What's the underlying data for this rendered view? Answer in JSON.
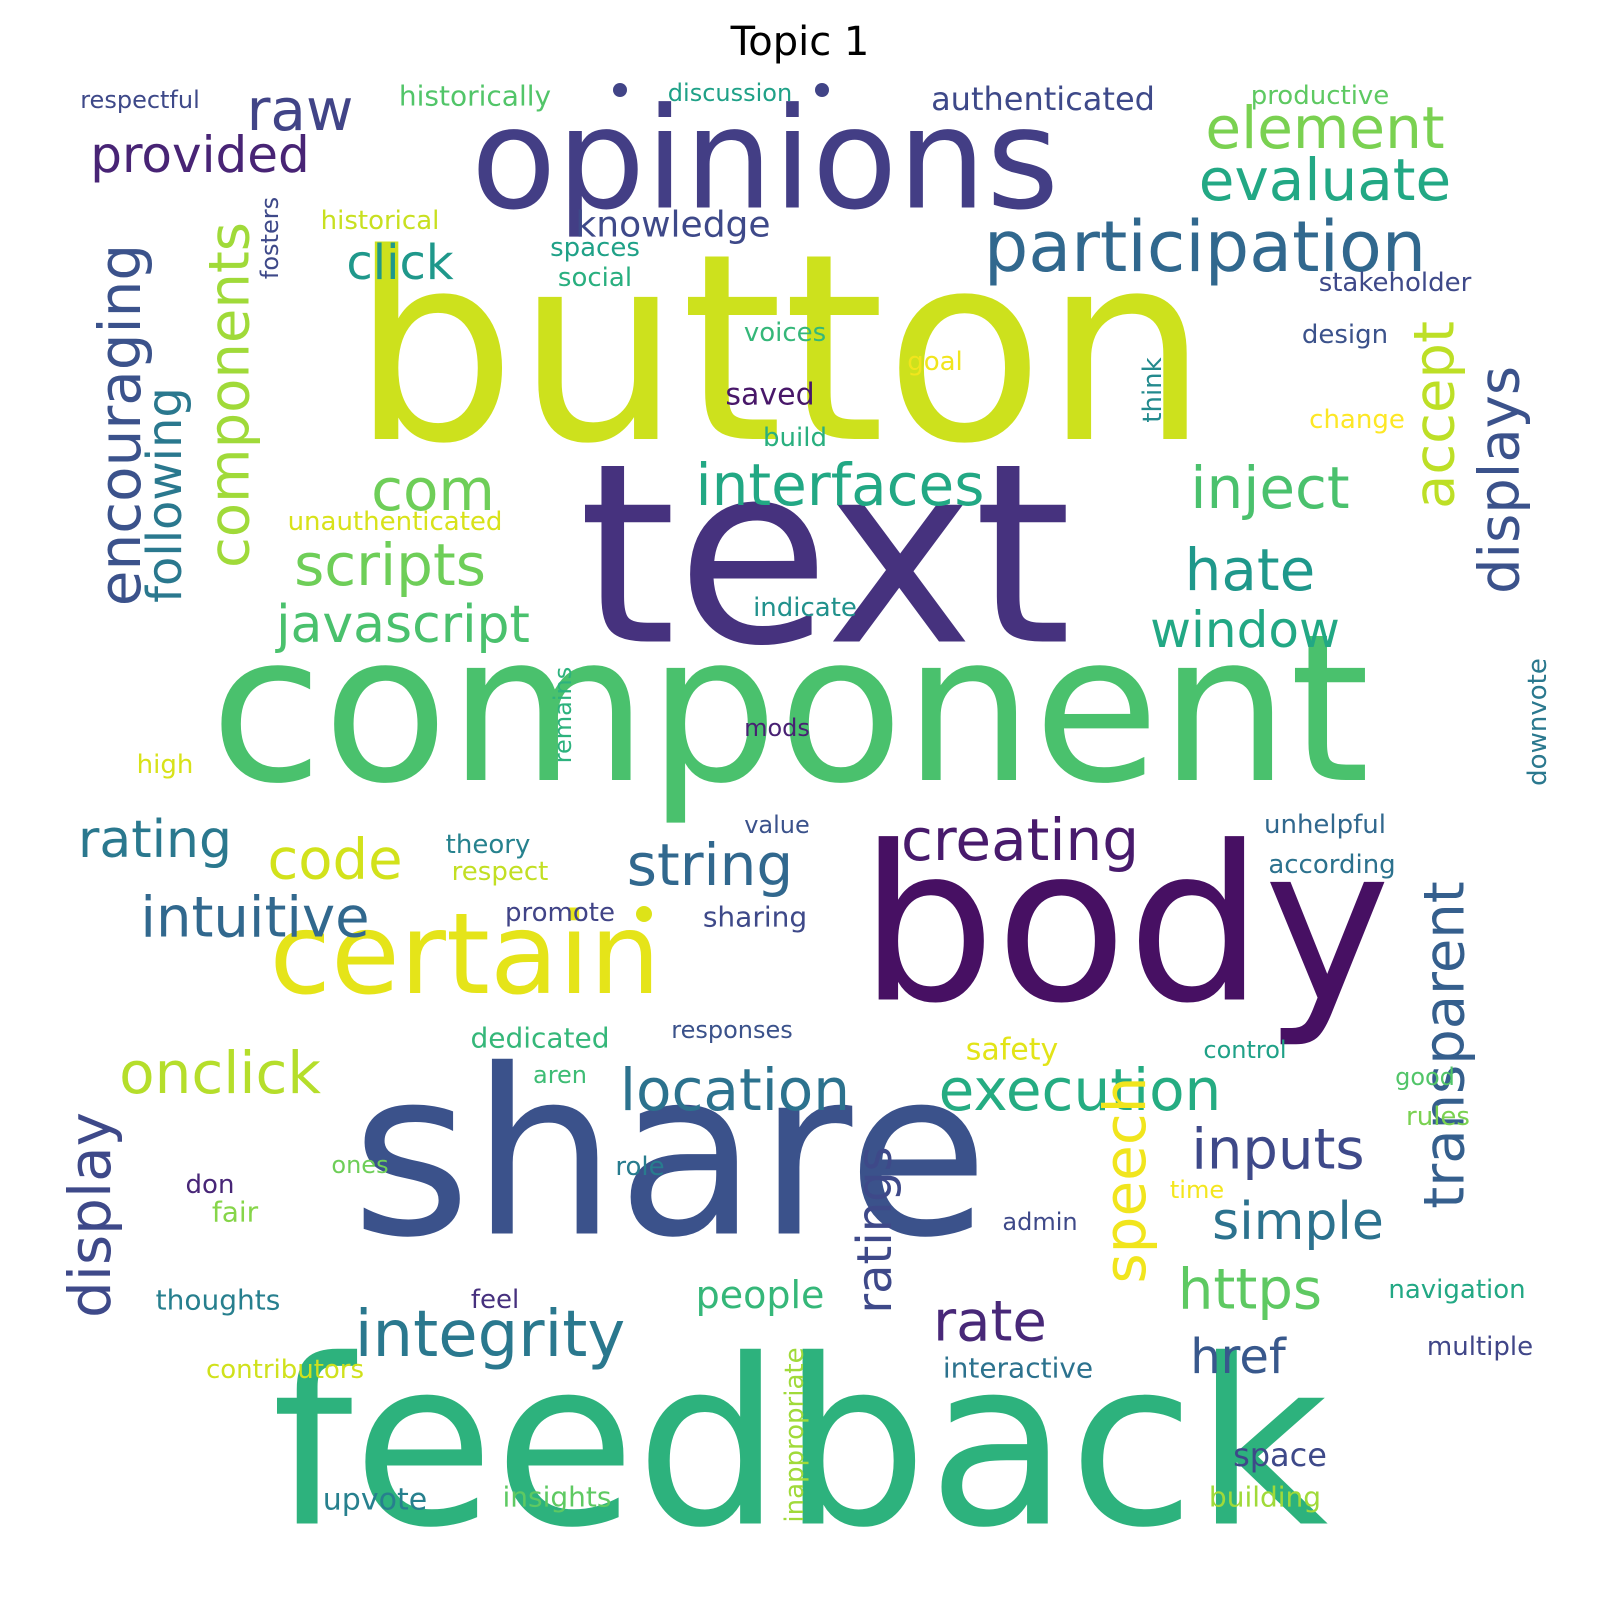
{
  "title": "Topic 1",
  "palette": {
    "viridis_dark": "#440154",
    "viridis_indigo": "#46327e",
    "viridis_blue": "#365c8d",
    "viridis_teal": "#277f8e",
    "viridis_green": "#1fa187",
    "viridis_lime": "#4ac16d",
    "viridis_yellowgreen": "#a0da39",
    "viridis_yellow": "#fde725"
  },
  "words": [
    {
      "text": "button",
      "color": "#cde11d"
    },
    {
      "text": "text",
      "color": "#46327e"
    },
    {
      "text": "component",
      "color": "#4ac16d"
    },
    {
      "text": "body",
      "color": "#471063"
    },
    {
      "text": "share",
      "color": "#3b528b"
    },
    {
      "text": "feedback",
      "color": "#2db27d"
    },
    {
      "text": "opinions",
      "color": "#433e85"
    },
    {
      "text": "certain",
      "color": "#e5e419"
    },
    {
      "text": "participation",
      "color": "#31688e"
    },
    {
      "text": "evaluate",
      "color": "#22a884"
    },
    {
      "text": "element",
      "color": "#7ad151"
    },
    {
      "text": "raw",
      "color": "#414487"
    },
    {
      "text": "provided",
      "color": "#482475"
    },
    {
      "text": "encouraging",
      "color": "#3b528b"
    },
    {
      "text": "components",
      "color": "#a0da39"
    },
    {
      "text": "following",
      "color": "#2a788e"
    },
    {
      "text": "click",
      "color": "#1f988b"
    },
    {
      "text": "knowledge",
      "color": "#3e4989"
    },
    {
      "text": "interfaces",
      "color": "#22a884"
    },
    {
      "text": "inject",
      "color": "#4ac16d"
    },
    {
      "text": "accept",
      "color": "#bddf26"
    },
    {
      "text": "displays",
      "color": "#3b528b"
    },
    {
      "text": "com",
      "color": "#6ece58"
    },
    {
      "text": "scripts",
      "color": "#6ece58"
    },
    {
      "text": "javascript",
      "color": "#4ac16d"
    },
    {
      "text": "hate",
      "color": "#1f988b"
    },
    {
      "text": "window",
      "color": "#22a884"
    },
    {
      "text": "rating",
      "color": "#2a788e"
    },
    {
      "text": "code",
      "color": "#d2e21b"
    },
    {
      "text": "string",
      "color": "#31688e"
    },
    {
      "text": "creating",
      "color": "#481a6c"
    },
    {
      "text": "intuitive",
      "color": "#31688e"
    },
    {
      "text": "transparent",
      "color": "#355f8d"
    },
    {
      "text": "onclick",
      "color": "#b5de2b"
    },
    {
      "text": "location",
      "color": "#2c728e"
    },
    {
      "text": "execution",
      "color": "#25ac82"
    },
    {
      "text": "display",
      "color": "#3e4989"
    },
    {
      "text": "integrity",
      "color": "#2a788e"
    },
    {
      "text": "speech",
      "color": "#f1e51d"
    },
    {
      "text": "inputs",
      "color": "#3e4989"
    },
    {
      "text": "simple",
      "color": "#2c728e"
    },
    {
      "text": "rate",
      "color": "#482878"
    },
    {
      "text": "ratings",
      "color": "#3e4989"
    },
    {
      "text": "https",
      "color": "#5ec962"
    },
    {
      "text": "href",
      "color": "#38588c"
    },
    {
      "text": "people",
      "color": "#35b779"
    },
    {
      "text": "space",
      "color": "#3e4989"
    },
    {
      "text": "upvote",
      "color": "#27808e"
    },
    {
      "text": "insights",
      "color": "#5ec962"
    },
    {
      "text": "building",
      "color": "#a0da39"
    },
    {
      "text": "inappropriate",
      "color": "#a0da39"
    },
    {
      "text": "interactive",
      "color": "#2c728e"
    },
    {
      "text": "multiple",
      "color": "#404688"
    },
    {
      "text": "navigation",
      "color": "#22a884"
    },
    {
      "text": "contributors",
      "color": "#d0e11c"
    },
    {
      "text": "thoughts",
      "color": "#277f8e"
    },
    {
      "text": "feel",
      "color": "#46307e"
    },
    {
      "text": "admin",
      "color": "#3e4989"
    },
    {
      "text": "fair",
      "color": "#86d549"
    },
    {
      "text": "don",
      "color": "#482677"
    },
    {
      "text": "ones",
      "color": "#6ece58"
    },
    {
      "text": "role",
      "color": "#287c8e"
    },
    {
      "text": "time",
      "color": "#f4e61e"
    },
    {
      "text": "rules",
      "color": "#7ad151"
    },
    {
      "text": "good",
      "color": "#52c569"
    },
    {
      "text": "control",
      "color": "#1fa187"
    },
    {
      "text": "aren",
      "color": "#3dbc74"
    },
    {
      "text": "safety",
      "color": "#e2e418"
    },
    {
      "text": "dedicated",
      "color": "#35b779"
    },
    {
      "text": "responses",
      "color": "#3b528b"
    },
    {
      "text": "promote",
      "color": "#414487"
    },
    {
      "text": "sharing",
      "color": "#3e4989"
    },
    {
      "text": "respect",
      "color": "#c2df23"
    },
    {
      "text": "theory",
      "color": "#26828e"
    },
    {
      "text": "value",
      "color": "#3b528b"
    },
    {
      "text": "unhelpful",
      "color": "#31688e"
    },
    {
      "text": "according",
      "color": "#2c728e"
    },
    {
      "text": "high",
      "color": "#d8e219"
    },
    {
      "text": "mods",
      "color": "#482173"
    },
    {
      "text": "remains",
      "color": "#2db27d"
    },
    {
      "text": "downvote",
      "color": "#2a788e"
    },
    {
      "text": "indicate",
      "color": "#21918c"
    },
    {
      "text": "unauthenticated",
      "color": "#d8e219"
    },
    {
      "text": "build",
      "color": "#29af7f"
    },
    {
      "text": "saved",
      "color": "#481769"
    },
    {
      "text": "think",
      "color": "#238a8d"
    },
    {
      "text": "change",
      "color": "#fde725"
    },
    {
      "text": "goal",
      "color": "#f1e51d"
    },
    {
      "text": "voices",
      "color": "#35b779"
    },
    {
      "text": "design",
      "color": "#3b528b"
    },
    {
      "text": "stakeholder",
      "color": "#3e4989"
    },
    {
      "text": "social",
      "color": "#29af7f"
    },
    {
      "text": "spaces",
      "color": "#1fa187"
    },
    {
      "text": "historical",
      "color": "#c8e020"
    },
    {
      "text": "fosters",
      "color": "#3e4989"
    },
    {
      "text": "historically",
      "color": "#52c569"
    },
    {
      "text": "discussion",
      "color": "#1fa187"
    },
    {
      "text": "authenticated",
      "color": "#3e4989"
    },
    {
      "text": "productive",
      "color": "#5ec962"
    },
    {
      "text": "respectful",
      "color": "#3e4989"
    }
  ]
}
